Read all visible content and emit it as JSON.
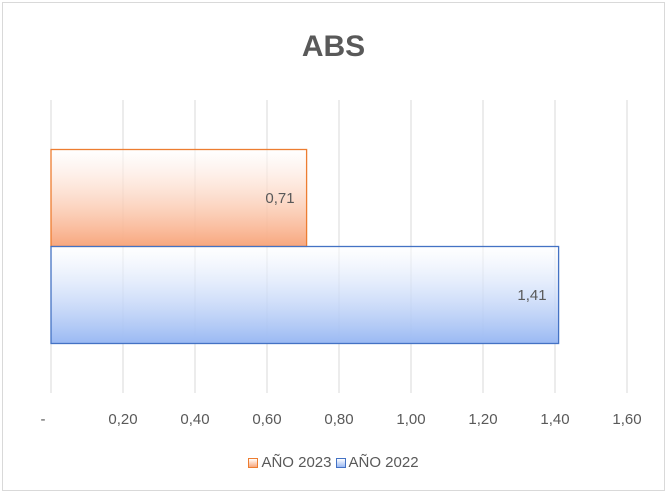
{
  "chart_data": {
    "type": "bar",
    "orientation": "horizontal",
    "title": "ABS",
    "xlim": [
      0,
      1.6
    ],
    "xticks": [
      0,
      0.2,
      0.4,
      0.6,
      0.8,
      1.0,
      1.2,
      1.4,
      1.6
    ],
    "xtick_labels": [
      "-",
      "0,20",
      "0,40",
      "0,60",
      "0,80",
      "1,00",
      "1,20",
      "1,40",
      "1,60"
    ],
    "grid": "vertical",
    "legend_position": "bottom",
    "series": [
      {
        "name": "AÑO 2023",
        "value": 0.71,
        "label": "0,71",
        "color": "#f8a77e",
        "border": "#ed7d31"
      },
      {
        "name": "AÑO 2022",
        "value": 1.41,
        "label": "1,41",
        "color": "#9ab9f3",
        "border": "#4472c4"
      }
    ]
  }
}
